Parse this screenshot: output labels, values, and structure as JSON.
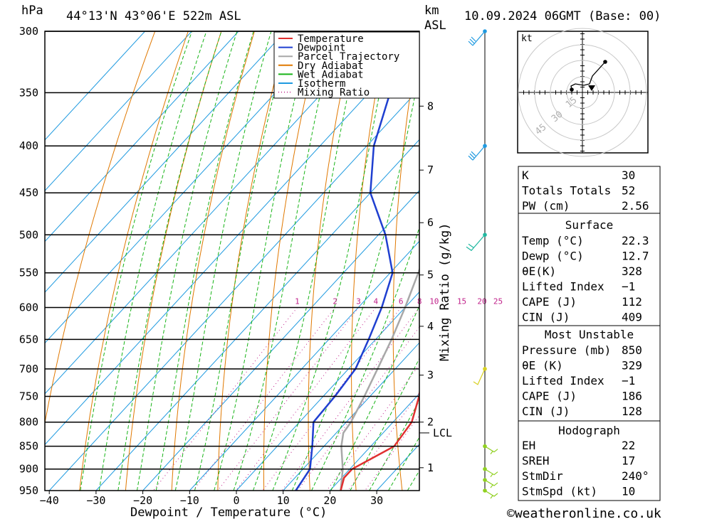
{
  "header": {
    "hpa_label": "hPa",
    "location": "44°13'N 43°06'E 522m ASL",
    "km_label": "km",
    "asl_label": "ASL",
    "datetime": "10.09.2024 06GMT (Base: 00)"
  },
  "footer": {
    "copyright": "©weatheronline.co.uk"
  },
  "legend": [
    {
      "label": "Temperature",
      "color": "#e03030",
      "style": "solid"
    },
    {
      "label": "Dewpoint",
      "color": "#1f3fd0",
      "style": "solid"
    },
    {
      "label": "Parcel Trajectory",
      "color": "#a8a8a8",
      "style": "solid"
    },
    {
      "label": "Dry Adiabat",
      "color": "#e07800",
      "style": "solid"
    },
    {
      "label": "Wet Adiabat",
      "color": "#18b418",
      "style": "solid"
    },
    {
      "label": "Isotherm",
      "color": "#1f9ae0",
      "style": "solid"
    },
    {
      "label": "Mixing Ratio",
      "color": "#c0208a",
      "style": "dotted"
    }
  ],
  "chart_data": {
    "type": "line",
    "subtype": "skew-T log-P",
    "xlabel": "Dewpoint / Temperature (°C)",
    "ylabel": "hPa",
    "y2label": "Mixing Ratio (g/kg)",
    "pressure_levels": [
      300,
      350,
      400,
      450,
      500,
      550,
      600,
      650,
      700,
      750,
      800,
      850,
      900,
      950
    ],
    "pressure_tick_labels": [
      "300",
      "350",
      "400",
      "450",
      "500",
      "550",
      "600",
      "650",
      "700",
      "750",
      "800",
      "850",
      "900",
      "950"
    ],
    "temperature_ticks": [
      -40,
      -30,
      -20,
      -10,
      0,
      10,
      20,
      30
    ],
    "temperature_tick_labels": [
      "−40",
      "−30",
      "−20",
      "−10",
      "0",
      "10",
      "20",
      "30"
    ],
    "height_ticks": [
      {
        "label": "8",
        "p": 362
      },
      {
        "label": "7",
        "p": 425
      },
      {
        "label": "6",
        "p": 485
      },
      {
        "label": "5",
        "p": 553
      },
      {
        "label": "4",
        "p": 629
      },
      {
        "label": "3",
        "p": 711
      },
      {
        "label": "2",
        "p": 800
      },
      {
        "label": "1",
        "p": 897
      }
    ],
    "lcl": {
      "label": "LCL",
      "p": 822
    },
    "mixing_ratio_labels": [
      "1",
      "2",
      "3",
      "4",
      "6",
      "8",
      "10",
      "15",
      "20",
      "25"
    ],
    "series": [
      {
        "name": "Temperature",
        "color": "#e03030",
        "points": [
          [
            950,
            22.3
          ],
          [
            920,
            20.5
          ],
          [
            900,
            20.5
          ],
          [
            850,
            25
          ],
          [
            800,
            24
          ],
          [
            750,
            20.5
          ],
          [
            700,
            16
          ],
          [
            650,
            11.5
          ],
          [
            600,
            6
          ],
          [
            550,
            0.2
          ],
          [
            500,
            -5.8
          ],
          [
            450,
            -12.5
          ],
          [
            400,
            -20.5
          ],
          [
            350,
            -29.5
          ],
          [
            300,
            -40.5
          ]
        ]
      },
      {
        "name": "Dewpoint",
        "color": "#1f3fd0",
        "points": [
          [
            950,
            12.7
          ],
          [
            900,
            11.5
          ],
          [
            850,
            7.5
          ],
          [
            800,
            3
          ],
          [
            750,
            2.5
          ],
          [
            700,
            1.5
          ],
          [
            650,
            -1.5
          ],
          [
            600,
            -5
          ],
          [
            550,
            -9.5
          ],
          [
            500,
            -18.5
          ],
          [
            450,
            -30
          ],
          [
            400,
            -38.5
          ],
          [
            350,
            -45.5
          ],
          [
            300,
            -54
          ]
        ]
      },
      {
        "name": "Parcel Trajectory",
        "color": "#a8a8a8",
        "points": [
          [
            950,
            22.3
          ],
          [
            900,
            18.5
          ],
          [
            850,
            13.7
          ],
          [
            822,
            11.5
          ],
          [
            800,
            11
          ],
          [
            750,
            8.8
          ],
          [
            700,
            6.2
          ],
          [
            650,
            3.4
          ],
          [
            600,
            0
          ],
          [
            550,
            -4
          ],
          [
            500,
            -8.5
          ],
          [
            450,
            -13.8
          ],
          [
            400,
            -20
          ],
          [
            350,
            -27.5
          ],
          [
            300,
            -37
          ]
        ]
      }
    ],
    "wind_barbs": [
      {
        "p": 300,
        "color": "#1f9ae0"
      },
      {
        "p": 400,
        "color": "#1f9ae0"
      },
      {
        "p": 500,
        "color": "#20b8a0"
      },
      {
        "p": 700,
        "color": "#d8d020"
      },
      {
        "p": 850,
        "color": "#90d020"
      },
      {
        "p": 900,
        "color": "#90d020"
      },
      {
        "p": 925,
        "color": "#90d020"
      },
      {
        "p": 950,
        "color": "#90d020"
      }
    ],
    "hodograph": {
      "units_label": "kt",
      "ring_labels": [
        "15",
        "30",
        "45"
      ]
    }
  },
  "indices": {
    "general": [
      {
        "label": "K",
        "value": "30"
      },
      {
        "label": "Totals Totals",
        "value": "52"
      },
      {
        "label": "PW (cm)",
        "value": "2.56"
      }
    ],
    "surface_title": "Surface",
    "surface": [
      {
        "label": "Temp (°C)",
        "value": "22.3"
      },
      {
        "label": "Dewp (°C)",
        "value": "12.7"
      },
      {
        "label": "θE(K)",
        "value": "328"
      },
      {
        "label": "Lifted Index",
        "value": "−1"
      },
      {
        "label": "CAPE (J)",
        "value": "112"
      },
      {
        "label": "CIN (J)",
        "value": "409"
      }
    ],
    "mu_title": "Most Unstable",
    "most_unstable": [
      {
        "label": "Pressure (mb)",
        "value": "850"
      },
      {
        "label": "θE (K)",
        "value": "329"
      },
      {
        "label": "Lifted Index",
        "value": "−1"
      },
      {
        "label": "CAPE (J)",
        "value": "186"
      },
      {
        "label": "CIN (J)",
        "value": "128"
      }
    ],
    "hodo_title": "Hodograph",
    "hodograph": [
      {
        "label": "EH",
        "value": "22"
      },
      {
        "label": "SREH",
        "value": "17"
      },
      {
        "label": "StmDir",
        "value": "240°"
      },
      {
        "label": "StmSpd (kt)",
        "value": "10"
      }
    ]
  }
}
